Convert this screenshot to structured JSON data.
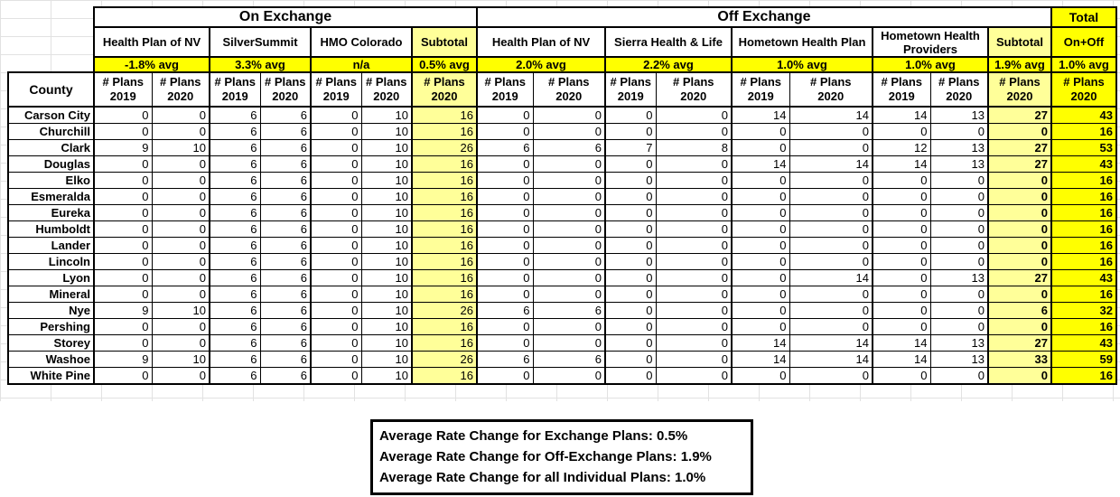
{
  "table": {
    "sections": {
      "on_exchange": "On Exchange",
      "off_exchange": "Off Exchange",
      "total": "Total"
    },
    "county_header": "County",
    "plans_label": "# Plans",
    "year_2019": "2019",
    "year_2020": "2020",
    "on_carriers": [
      {
        "name": "Health Plan of NV",
        "avg": "-1.8% avg"
      },
      {
        "name": "SilverSummit",
        "avg": "3.3% avg"
      },
      {
        "name": "HMO Colorado",
        "avg": "n/a"
      },
      {
        "name": "Subtotal",
        "avg": "0.5% avg"
      }
    ],
    "off_carriers": [
      {
        "name": "Health Plan of NV",
        "avg": "2.0% avg"
      },
      {
        "name": "Sierra Health & Life",
        "avg": "2.2% avg"
      },
      {
        "name": "Hometown Health Plan",
        "avg": "1.0% avg"
      },
      {
        "name": "Hometown Health Providers",
        "avg": "1.0% avg"
      },
      {
        "name": "Subtotal",
        "avg": "1.9% avg"
      }
    ],
    "total_col": {
      "name": "On+Off",
      "avg": "1.0% avg"
    },
    "rows": [
      {
        "county": "Carson City",
        "values": [
          0,
          0,
          6,
          6,
          0,
          10,
          16,
          0,
          0,
          0,
          0,
          14,
          14,
          14,
          13,
          27,
          43
        ]
      },
      {
        "county": "Churchill",
        "values": [
          0,
          0,
          6,
          6,
          0,
          10,
          16,
          0,
          0,
          0,
          0,
          0,
          0,
          0,
          0,
          0,
          16
        ]
      },
      {
        "county": "Clark",
        "values": [
          9,
          10,
          6,
          6,
          0,
          10,
          26,
          6,
          6,
          7,
          8,
          0,
          0,
          12,
          13,
          27,
          53
        ]
      },
      {
        "county": "Douglas",
        "values": [
          0,
          0,
          6,
          6,
          0,
          10,
          16,
          0,
          0,
          0,
          0,
          14,
          14,
          14,
          13,
          27,
          43
        ]
      },
      {
        "county": "Elko",
        "values": [
          0,
          0,
          6,
          6,
          0,
          10,
          16,
          0,
          0,
          0,
          0,
          0,
          0,
          0,
          0,
          0,
          16
        ]
      },
      {
        "county": "Esmeralda",
        "values": [
          0,
          0,
          6,
          6,
          0,
          10,
          16,
          0,
          0,
          0,
          0,
          0,
          0,
          0,
          0,
          0,
          16
        ]
      },
      {
        "county": "Eureka",
        "values": [
          0,
          0,
          6,
          6,
          0,
          10,
          16,
          0,
          0,
          0,
          0,
          0,
          0,
          0,
          0,
          0,
          16
        ]
      },
      {
        "county": "Humboldt",
        "values": [
          0,
          0,
          6,
          6,
          0,
          10,
          16,
          0,
          0,
          0,
          0,
          0,
          0,
          0,
          0,
          0,
          16
        ]
      },
      {
        "county": "Lander",
        "values": [
          0,
          0,
          6,
          6,
          0,
          10,
          16,
          0,
          0,
          0,
          0,
          0,
          0,
          0,
          0,
          0,
          16
        ]
      },
      {
        "county": "Lincoln",
        "values": [
          0,
          0,
          6,
          6,
          0,
          10,
          16,
          0,
          0,
          0,
          0,
          0,
          0,
          0,
          0,
          0,
          16
        ]
      },
      {
        "county": "Lyon",
        "values": [
          0,
          0,
          6,
          6,
          0,
          10,
          16,
          0,
          0,
          0,
          0,
          0,
          14,
          0,
          13,
          27,
          43
        ]
      },
      {
        "county": "Mineral",
        "values": [
          0,
          0,
          6,
          6,
          0,
          10,
          16,
          0,
          0,
          0,
          0,
          0,
          0,
          0,
          0,
          0,
          16
        ]
      },
      {
        "county": "Nye",
        "values": [
          9,
          10,
          6,
          6,
          0,
          10,
          26,
          6,
          6,
          0,
          0,
          0,
          0,
          0,
          0,
          6,
          32
        ]
      },
      {
        "county": "Pershing",
        "values": [
          0,
          0,
          6,
          6,
          0,
          10,
          16,
          0,
          0,
          0,
          0,
          0,
          0,
          0,
          0,
          0,
          16
        ]
      },
      {
        "county": "Storey",
        "values": [
          0,
          0,
          6,
          6,
          0,
          10,
          16,
          0,
          0,
          0,
          0,
          14,
          14,
          14,
          13,
          27,
          43
        ]
      },
      {
        "county": "Washoe",
        "values": [
          9,
          10,
          6,
          6,
          0,
          10,
          26,
          6,
          6,
          0,
          0,
          14,
          14,
          14,
          13,
          33,
          59
        ]
      },
      {
        "county": "White Pine",
        "values": [
          0,
          0,
          6,
          6,
          0,
          10,
          16,
          0,
          0,
          0,
          0,
          0,
          0,
          0,
          0,
          0,
          16
        ]
      }
    ]
  },
  "note_box": {
    "lines": [
      "Average Rate Change for Exchange Plans: 0.5%",
      "Average Rate Change for Off-Exchange Plans: 1.9%",
      "Average Rate Change for all Individual Plans: 1.0%"
    ]
  },
  "colors": {
    "highlight_yellow": "#FFFF00",
    "subtotal_yellow": "#FFFF99",
    "gridline_gray": "#E2E2E2"
  }
}
